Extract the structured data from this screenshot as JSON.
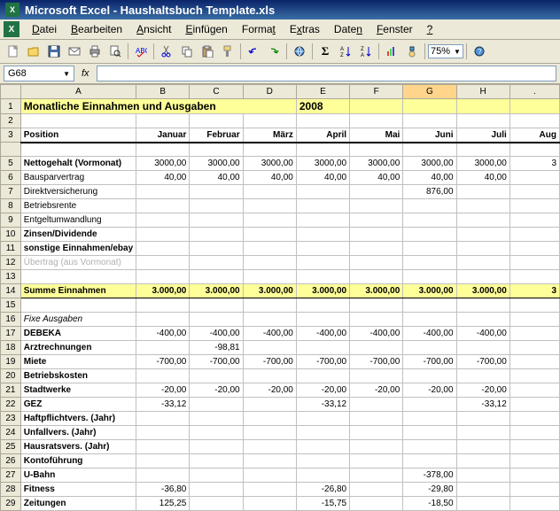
{
  "window": {
    "title": "Microsoft Excel - Haushaltsbuch Template.xls"
  },
  "menu": {
    "items": [
      "Datei",
      "Bearbeiten",
      "Ansicht",
      "Einfügen",
      "Format",
      "Extras",
      "Daten",
      "Fenster",
      "?"
    ],
    "underlines": [
      0,
      0,
      0,
      0,
      5,
      1,
      4,
      0,
      0
    ]
  },
  "toolbar": {
    "zoom": "75%"
  },
  "formula_bar": {
    "name_box": "G68",
    "fx": ""
  },
  "sheet": {
    "title": "Monatliche Einnahmen und Ausgaben",
    "year": "2008",
    "position_label": "Position",
    "months": [
      "Januar",
      "Februar",
      "März",
      "April",
      "Mai",
      "Juni",
      "Juli",
      "Aug"
    ],
    "selected_col": "G",
    "rows": [
      {
        "n": 5,
        "label": "Nettogehalt (Vormonat)",
        "bold": true,
        "vals": [
          "3000,00",
          "3000,00",
          "3000,00",
          "3000,00",
          "3000,00",
          "3000,00",
          "3000,00",
          "3"
        ]
      },
      {
        "n": 6,
        "label": "Bausparvertrag",
        "vals": [
          "40,00",
          "40,00",
          "40,00",
          "40,00",
          "40,00",
          "40,00",
          "40,00",
          ""
        ]
      },
      {
        "n": 7,
        "label": "Direktversicherung",
        "vals": [
          "",
          "",
          "",
          "",
          "",
          "876,00",
          "",
          ""
        ]
      },
      {
        "n": 8,
        "label": "Betriebsrente",
        "vals": [
          "",
          "",
          "",
          "",
          "",
          "",
          "",
          ""
        ]
      },
      {
        "n": 9,
        "label": "Entgeltumwandlung",
        "vals": [
          "",
          "",
          "",
          "",
          "",
          "",
          "",
          ""
        ]
      },
      {
        "n": 10,
        "label": "Zinsen/Dividende",
        "bold": true,
        "vals": [
          "",
          "",
          "",
          "",
          "",
          "",
          "",
          ""
        ]
      },
      {
        "n": 11,
        "label": "sonstige Einnahmen/ebay",
        "bold": true,
        "vals": [
          "",
          "",
          "",
          "",
          "",
          "",
          "",
          ""
        ]
      },
      {
        "n": 12,
        "label": "Übertrag (aus Vormonat)",
        "grey": true,
        "vals": [
          "",
          "",
          "",
          "",
          "",
          "",
          "",
          ""
        ]
      },
      {
        "n": 13,
        "label": "",
        "vals": [
          "",
          "",
          "",
          "",
          "",
          "",
          "",
          ""
        ]
      }
    ],
    "sum_row": {
      "n": 14,
      "label": "Summe Einnahmen",
      "vals": [
        "3.000,00",
        "3.000,00",
        "3.000,00",
        "3.000,00",
        "3.000,00",
        "3.000,00",
        "3.000,00",
        "3"
      ]
    },
    "blank15": {
      "n": 15
    },
    "fixe_row": {
      "n": 16,
      "label": "Fixe Ausgaben"
    },
    "expense_rows": [
      {
        "n": 17,
        "label": "DEBEKA",
        "bold": true,
        "vals": [
          "-400,00",
          "-400,00",
          "-400,00",
          "-400,00",
          "-400,00",
          "-400,00",
          "-400,00",
          ""
        ]
      },
      {
        "n": 18,
        "label": "Arztrechnungen",
        "bold": true,
        "vals": [
          "",
          "-98,81",
          "",
          "",
          "",
          "",
          "",
          ""
        ]
      },
      {
        "n": 19,
        "label": "Miete",
        "bold": true,
        "vals": [
          "-700,00",
          "-700,00",
          "-700,00",
          "-700,00",
          "-700,00",
          "-700,00",
          "-700,00",
          ""
        ]
      },
      {
        "n": 20,
        "label": "Betriebskosten",
        "bold": true,
        "vals": [
          "",
          "",
          "",
          "",
          "",
          "",
          "",
          ""
        ]
      },
      {
        "n": 21,
        "label": "Stadtwerke",
        "bold": true,
        "vals": [
          "-20,00",
          "-20,00",
          "-20,00",
          "-20,00",
          "-20,00",
          "-20,00",
          "-20,00",
          ""
        ]
      },
      {
        "n": 22,
        "label": "GEZ",
        "bold": true,
        "vals": [
          "-33,12",
          "",
          "",
          "-33,12",
          "",
          "",
          "-33,12",
          ""
        ]
      },
      {
        "n": 23,
        "label": "Haftpflichtvers. (Jahr)",
        "bold": true,
        "vals": [
          "",
          "",
          "",
          "",
          "",
          "",
          "",
          ""
        ]
      },
      {
        "n": 24,
        "label": "Unfallvers. (Jahr)",
        "bold": true,
        "vals": [
          "",
          "",
          "",
          "",
          "",
          "",
          "",
          ""
        ]
      },
      {
        "n": 25,
        "label": "Hausratsvers. (Jahr)",
        "bold": true,
        "vals": [
          "",
          "",
          "",
          "",
          "",
          "",
          "",
          ""
        ]
      },
      {
        "n": 26,
        "label": "Kontoführung",
        "bold": true,
        "vals": [
          "",
          "",
          "",
          "",
          "",
          "",
          "",
          ""
        ]
      },
      {
        "n": 27,
        "label": "U-Bahn",
        "bold": true,
        "vals": [
          "",
          "",
          "",
          "",
          "",
          "-378,00",
          "",
          ""
        ]
      },
      {
        "n": 28,
        "label": "Fitness",
        "bold": true,
        "vals": [
          "-36,80",
          "",
          "",
          "-26,80",
          "",
          "-29,80",
          "",
          ""
        ]
      },
      {
        "n": 29,
        "label": "Zeitungen",
        "bold": true,
        "vals": [
          "125,25",
          "",
          "",
          "-15,75",
          "",
          "-18,50",
          "",
          ""
        ]
      }
    ],
    "col_letters": [
      "A",
      "B",
      "C",
      "D",
      "E",
      "F",
      "G",
      "H",
      "."
    ]
  },
  "colors": {
    "title_bg": "#ffff99",
    "chrome": "#ece9d8",
    "grid": "#c0c0c0",
    "titlebar_top": "#0a246a",
    "titlebar_bot": "#3a6ea5"
  }
}
